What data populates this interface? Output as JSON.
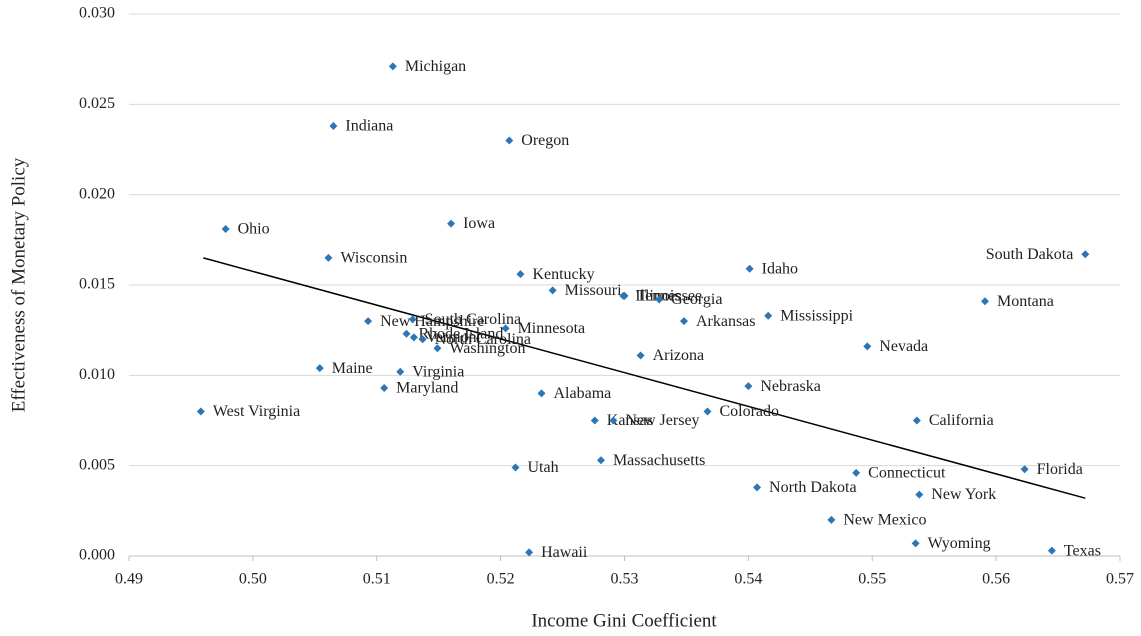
{
  "chart_data": {
    "type": "scatter",
    "xlabel": "Income Gini Coefficient",
    "ylabel": "Effectiveness of Monetary Policy",
    "xlim": [
      0.49,
      0.57
    ],
    "ylim": [
      0,
      0.03
    ],
    "xticks": [
      {
        "value": 0.49,
        "label": "0.49"
      },
      {
        "value": 0.5,
        "label": "0.50"
      },
      {
        "value": 0.51,
        "label": "0.51"
      },
      {
        "value": 0.52,
        "label": "0.52"
      },
      {
        "value": 0.53,
        "label": "0.53"
      },
      {
        "value": 0.54,
        "label": "0.54"
      },
      {
        "value": 0.55,
        "label": "0.55"
      },
      {
        "value": 0.56,
        "label": "0.56"
      },
      {
        "value": 0.57,
        "label": "0.57"
      }
    ],
    "yticks": [
      {
        "value": 0,
        "label": "0.000"
      },
      {
        "value": 0.005,
        "label": "0.005"
      },
      {
        "value": 0.01,
        "label": "0.010"
      },
      {
        "value": 0.015,
        "label": "0.015"
      },
      {
        "value": 0.02,
        "label": "0.020"
      },
      {
        "value": 0.025,
        "label": "0.025"
      },
      {
        "value": 0.03,
        "label": "0.030"
      }
    ],
    "grid": true,
    "series": [
      {
        "color": "#2e75b6",
        "labels": [
          "Michigan",
          "Indiana",
          "Oregon",
          "Ohio",
          "Iowa",
          "Wisconsin",
          "Kentucky",
          "Missouri",
          "Illinois",
          "Tennessee",
          "Georgia",
          "Idaho",
          "South Dakota",
          "Montana",
          "Mississippi",
          "Arkansas",
          "New Hampshire",
          "South Carolina",
          "Minnesota",
          "Rhode Island",
          "Vermont",
          "North Carolina",
          "Washington",
          "Arizona",
          "Nevada",
          "Maine",
          "Virginia",
          "Maryland",
          "Nebraska",
          "Alabama",
          "West Virginia",
          "Colorado",
          "Kansas",
          "New Jersey",
          "California",
          "Massachusetts",
          "Utah",
          "Connecticut",
          "Florida",
          "North Dakota",
          "New York",
          "New Mexico",
          "Wyoming",
          "Texas",
          "Hawaii"
        ],
        "x": [
          0.5113,
          0.5065,
          0.5207,
          0.4978,
          0.516,
          0.5061,
          0.5216,
          0.5242,
          0.5299,
          0.53,
          0.5328,
          0.5401,
          0.5672,
          0.5591,
          0.5416,
          0.5348,
          0.5093,
          0.5129,
          0.5204,
          0.5124,
          0.513,
          0.5137,
          0.5149,
          0.5313,
          0.5496,
          0.5054,
          0.5119,
          0.5106,
          0.54,
          0.5233,
          0.4958,
          0.5367,
          0.5276,
          0.5291,
          0.5536,
          0.5281,
          0.5212,
          0.5487,
          0.5623,
          0.5407,
          0.5538,
          0.5467,
          0.5535,
          0.5645,
          0.5223
        ],
        "values": [
          0.0271,
          0.0238,
          0.023,
          0.0181,
          0.0184,
          0.0165,
          0.0156,
          0.0147,
          0.0144,
          0.0144,
          0.0142,
          0.0159,
          0.0167,
          0.0141,
          0.0133,
          0.013,
          0.013,
          0.0131,
          0.0126,
          0.0123,
          0.0121,
          0.012,
          0.0115,
          0.0111,
          0.0116,
          0.0104,
          0.0102,
          0.0093,
          0.0094,
          0.009,
          0.008,
          0.008,
          0.0075,
          0.0075,
          0.0075,
          0.0053,
          0.0049,
          0.0046,
          0.0048,
          0.0038,
          0.0034,
          0.002,
          0.0007,
          0.0003,
          0.0002
        ]
      }
    ],
    "trendline": {
      "x": [
        0.496,
        0.5672
      ],
      "y": [
        0.0165,
        0.0032
      ]
    }
  }
}
